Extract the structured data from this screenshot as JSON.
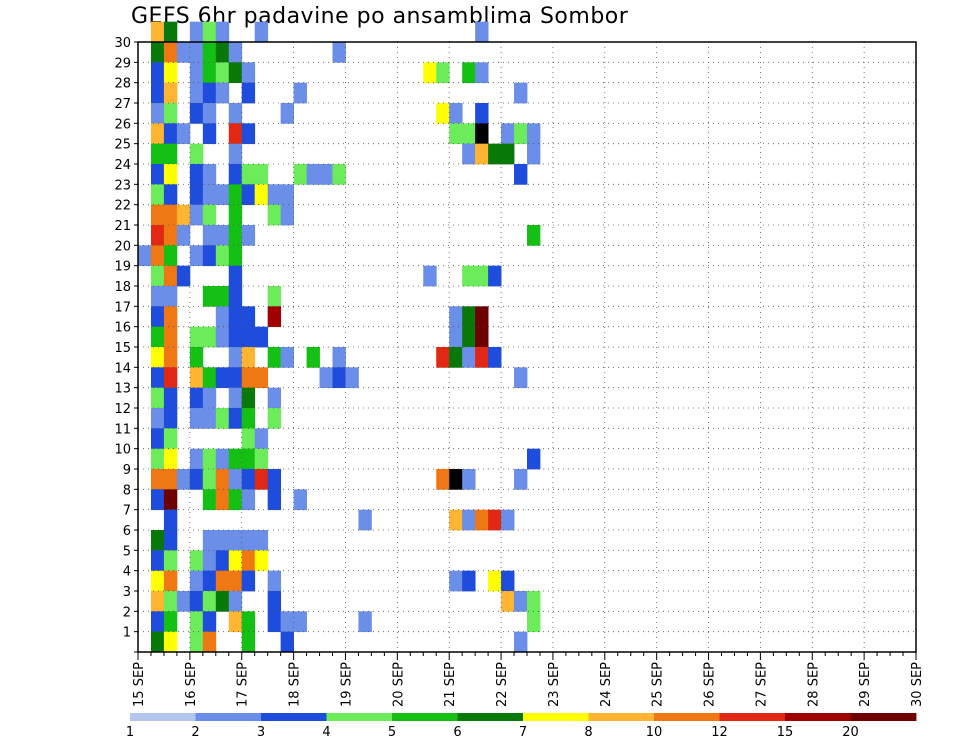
{
  "chart_data": {
    "type": "heatmap",
    "title": "GEFS 6hr padavine po ansamblima Sombor",
    "x_tick_labels": [
      "15 SEP",
      "16 SEP",
      "17 SEP",
      "18 SEP",
      "19 SEP",
      "20 SEP",
      "21 SEP",
      "22 SEP",
      "23 SEP",
      "24 SEP",
      "25 SEP",
      "26 SEP",
      "27 SEP",
      "28 SEP",
      "29 SEP",
      "30 SEP"
    ],
    "y_tick_labels": [
      "1",
      "2",
      "3",
      "4",
      "5",
      "6",
      "7",
      "8",
      "9",
      "10",
      "11",
      "12",
      "13",
      "14",
      "15",
      "16",
      "17",
      "18",
      "19",
      "20",
      "21",
      "22",
      "23",
      "24",
      "25",
      "26",
      "27",
      "28",
      "29",
      "30"
    ],
    "x_range": [
      0,
      60
    ],
    "y_range": [
      0,
      30
    ],
    "x_step_hours": 6,
    "grid": true,
    "legend": {
      "placement": "bottom",
      "labels": [
        "1",
        "2",
        "3",
        "4",
        "5",
        "6",
        "7",
        "8",
        "10",
        "12",
        "15",
        "20"
      ],
      "colors": [
        "#b4c6f0",
        "#6b8ee8",
        "#1e4cdc",
        "#6cec5a",
        "#14c014",
        "#087808",
        "#ffff00",
        "#ffb432",
        "#f07814",
        "#e02814",
        "#a00000",
        "#6e0000"
      ]
    },
    "cells": [
      [
        1,
        30,
        7
      ],
      [
        2,
        30,
        5
      ],
      [
        4,
        30,
        1
      ],
      [
        5,
        30,
        3
      ],
      [
        6,
        30,
        1
      ],
      [
        9,
        30,
        1
      ],
      [
        26,
        30,
        1
      ],
      [
        1,
        29,
        5
      ],
      [
        2,
        29,
        8
      ],
      [
        3,
        29,
        1
      ],
      [
        4,
        29,
        1
      ],
      [
        5,
        29,
        4
      ],
      [
        6,
        29,
        5
      ],
      [
        7,
        29,
        1
      ],
      [
        15,
        29,
        1
      ],
      [
        1,
        28,
        2
      ],
      [
        2,
        28,
        6
      ],
      [
        4,
        28,
        1
      ],
      [
        5,
        28,
        4
      ],
      [
        6,
        28,
        3
      ],
      [
        7,
        28,
        5
      ],
      [
        8,
        28,
        1
      ],
      [
        22,
        28,
        6
      ],
      [
        23,
        28,
        3
      ],
      [
        25,
        28,
        4
      ],
      [
        26,
        28,
        1
      ],
      [
        1,
        27,
        2
      ],
      [
        2,
        27,
        7
      ],
      [
        4,
        27,
        1
      ],
      [
        5,
        27,
        2
      ],
      [
        6,
        27,
        1
      ],
      [
        8,
        27,
        2
      ],
      [
        12,
        27,
        1
      ],
      [
        29,
        27,
        1
      ],
      [
        1,
        26,
        1
      ],
      [
        2,
        26,
        3
      ],
      [
        4,
        26,
        2
      ],
      [
        5,
        26,
        1
      ],
      [
        7,
        26,
        1
      ],
      [
        11,
        26,
        1
      ],
      [
        23,
        26,
        6
      ],
      [
        24,
        26,
        1
      ],
      [
        26,
        26,
        2
      ],
      [
        1,
        25,
        7
      ],
      [
        2,
        25,
        2
      ],
      [
        3,
        25,
        1
      ],
      [
        5,
        25,
        2
      ],
      [
        7,
        25,
        9
      ],
      [
        8,
        25,
        2
      ],
      [
        24,
        25,
        3
      ],
      [
        25,
        25,
        3
      ],
      [
        26,
        25,
        12
      ],
      [
        28,
        25,
        1
      ],
      [
        29,
        25,
        3
      ],
      [
        30,
        25,
        1
      ],
      [
        1,
        24,
        4
      ],
      [
        2,
        24,
        4
      ],
      [
        4,
        24,
        3
      ],
      [
        7,
        24,
        1
      ],
      [
        25,
        24,
        1
      ],
      [
        26,
        24,
        7
      ],
      [
        27,
        24,
        5
      ],
      [
        28,
        24,
        5
      ],
      [
        30,
        24,
        1
      ],
      [
        1,
        23,
        2
      ],
      [
        2,
        23,
        6
      ],
      [
        4,
        23,
        2
      ],
      [
        5,
        23,
        1
      ],
      [
        7,
        23,
        2
      ],
      [
        8,
        23,
        3
      ],
      [
        9,
        23,
        3
      ],
      [
        12,
        23,
        3
      ],
      [
        13,
        23,
        1
      ],
      [
        14,
        23,
        1
      ],
      [
        15,
        23,
        3
      ],
      [
        29,
        23,
        2
      ],
      [
        1,
        22,
        3
      ],
      [
        2,
        22,
        2
      ],
      [
        4,
        22,
        2
      ],
      [
        5,
        22,
        1
      ],
      [
        6,
        22,
        1
      ],
      [
        7,
        22,
        4
      ],
      [
        8,
        22,
        2
      ],
      [
        9,
        22,
        6
      ],
      [
        10,
        22,
        1
      ],
      [
        11,
        22,
        1
      ],
      [
        1,
        21,
        8
      ],
      [
        2,
        21,
        8
      ],
      [
        3,
        21,
        7
      ],
      [
        4,
        21,
        1
      ],
      [
        5,
        21,
        3
      ],
      [
        7,
        21,
        4
      ],
      [
        10,
        21,
        3
      ],
      [
        11,
        21,
        1
      ],
      [
        1,
        20,
        9
      ],
      [
        2,
        20,
        8
      ],
      [
        3,
        20,
        1
      ],
      [
        5,
        20,
        1
      ],
      [
        6,
        20,
        1
      ],
      [
        7,
        20,
        4
      ],
      [
        8,
        20,
        1
      ],
      [
        30,
        20,
        4
      ],
      [
        0,
        19,
        1
      ],
      [
        1,
        19,
        8
      ],
      [
        2,
        19,
        4
      ],
      [
        4,
        19,
        1
      ],
      [
        5,
        19,
        2
      ],
      [
        6,
        19,
        3
      ],
      [
        7,
        19,
        4
      ],
      [
        1,
        18,
        3
      ],
      [
        2,
        18,
        8
      ],
      [
        3,
        18,
        2
      ],
      [
        7,
        18,
        2
      ],
      [
        22,
        18,
        1
      ],
      [
        25,
        18,
        3
      ],
      [
        26,
        18,
        3
      ],
      [
        27,
        18,
        2
      ],
      [
        1,
        17,
        1
      ],
      [
        2,
        17,
        1
      ],
      [
        5,
        17,
        4
      ],
      [
        6,
        17,
        4
      ],
      [
        7,
        17,
        2
      ],
      [
        10,
        17,
        3
      ],
      [
        1,
        16,
        2
      ],
      [
        2,
        16,
        8
      ],
      [
        6,
        16,
        1
      ],
      [
        7,
        16,
        2
      ],
      [
        8,
        16,
        2
      ],
      [
        10,
        16,
        10
      ],
      [
        24,
        16,
        1
      ],
      [
        25,
        16,
        5
      ],
      [
        26,
        16,
        11
      ],
      [
        1,
        15,
        4
      ],
      [
        2,
        15,
        8
      ],
      [
        4,
        15,
        3
      ],
      [
        5,
        15,
        3
      ],
      [
        6,
        15,
        1
      ],
      [
        7,
        15,
        2
      ],
      [
        8,
        15,
        2
      ],
      [
        9,
        15,
        2
      ],
      [
        24,
        15,
        1
      ],
      [
        25,
        15,
        5
      ],
      [
        26,
        15,
        11
      ],
      [
        1,
        14,
        6
      ],
      [
        2,
        14,
        8
      ],
      [
        4,
        14,
        4
      ],
      [
        7,
        14,
        1
      ],
      [
        8,
        14,
        7
      ],
      [
        10,
        14,
        4
      ],
      [
        11,
        14,
        1
      ],
      [
        13,
        14,
        4
      ],
      [
        15,
        14,
        1
      ],
      [
        23,
        14,
        9
      ],
      [
        24,
        14,
        5
      ],
      [
        25,
        14,
        1
      ],
      [
        26,
        14,
        9
      ],
      [
        27,
        14,
        2
      ],
      [
        1,
        13,
        2
      ],
      [
        2,
        13,
        9
      ],
      [
        4,
        13,
        7
      ],
      [
        5,
        13,
        4
      ],
      [
        6,
        13,
        2
      ],
      [
        7,
        13,
        2
      ],
      [
        8,
        13,
        8
      ],
      [
        9,
        13,
        8
      ],
      [
        14,
        13,
        1
      ],
      [
        15,
        13,
        2
      ],
      [
        16,
        13,
        1
      ],
      [
        29,
        13,
        1
      ],
      [
        1,
        12,
        3
      ],
      [
        2,
        12,
        2
      ],
      [
        4,
        12,
        2
      ],
      [
        5,
        12,
        1
      ],
      [
        7,
        12,
        1
      ],
      [
        8,
        12,
        5
      ],
      [
        10,
        12,
        1
      ],
      [
        1,
        11,
        1
      ],
      [
        2,
        11,
        2
      ],
      [
        4,
        11,
        1
      ],
      [
        5,
        11,
        1
      ],
      [
        6,
        11,
        3
      ],
      [
        7,
        11,
        2
      ],
      [
        8,
        11,
        4
      ],
      [
        10,
        11,
        3
      ],
      [
        1,
        10,
        2
      ],
      [
        2,
        10,
        3
      ],
      [
        8,
        10,
        3
      ],
      [
        9,
        10,
        1
      ],
      [
        1,
        9,
        3
      ],
      [
        2,
        9,
        6
      ],
      [
        4,
        9,
        1
      ],
      [
        5,
        9,
        3
      ],
      [
        6,
        9,
        1
      ],
      [
        7,
        9,
        4
      ],
      [
        8,
        9,
        4
      ],
      [
        9,
        9,
        3
      ],
      [
        30,
        9,
        2
      ],
      [
        1,
        8,
        8
      ],
      [
        2,
        8,
        8
      ],
      [
        3,
        8,
        1
      ],
      [
        4,
        8,
        2
      ],
      [
        5,
        8,
        3
      ],
      [
        6,
        8,
        8
      ],
      [
        7,
        8,
        1
      ],
      [
        8,
        8,
        2
      ],
      [
        9,
        8,
        9
      ],
      [
        10,
        8,
        2
      ],
      [
        23,
        8,
        8
      ],
      [
        24,
        8,
        12
      ],
      [
        25,
        8,
        1
      ],
      [
        29,
        8,
        1
      ],
      [
        1,
        7,
        2
      ],
      [
        2,
        7,
        11
      ],
      [
        5,
        7,
        4
      ],
      [
        6,
        7,
        8
      ],
      [
        7,
        7,
        4
      ],
      [
        8,
        7,
        1
      ],
      [
        10,
        7,
        2
      ],
      [
        12,
        7,
        1
      ],
      [
        2,
        6,
        2
      ],
      [
        17,
        6,
        1
      ],
      [
        24,
        6,
        7
      ],
      [
        25,
        6,
        1
      ],
      [
        26,
        6,
        8
      ],
      [
        27,
        6,
        9
      ],
      [
        28,
        6,
        1
      ],
      [
        1,
        5,
        5
      ],
      [
        2,
        5,
        2
      ],
      [
        5,
        5,
        1
      ],
      [
        6,
        5,
        1
      ],
      [
        7,
        5,
        1
      ],
      [
        8,
        5,
        1
      ],
      [
        9,
        5,
        1
      ],
      [
        1,
        4,
        2
      ],
      [
        2,
        4,
        3
      ],
      [
        4,
        4,
        3
      ],
      [
        5,
        4,
        1
      ],
      [
        6,
        4,
        2
      ],
      [
        7,
        4,
        6
      ],
      [
        8,
        4,
        8
      ],
      [
        9,
        4,
        6
      ],
      [
        1,
        3,
        6
      ],
      [
        2,
        3,
        8
      ],
      [
        4,
        3,
        1
      ],
      [
        5,
        3,
        2
      ],
      [
        6,
        3,
        8
      ],
      [
        7,
        3,
        8
      ],
      [
        8,
        3,
        2
      ],
      [
        10,
        3,
        1
      ],
      [
        24,
        3,
        1
      ],
      [
        25,
        3,
        2
      ],
      [
        27,
        3,
        6
      ],
      [
        28,
        3,
        2
      ],
      [
        1,
        2,
        7
      ],
      [
        2,
        2,
        3
      ],
      [
        3,
        2,
        1
      ],
      [
        4,
        2,
        2
      ],
      [
        5,
        2,
        3
      ],
      [
        6,
        2,
        5
      ],
      [
        7,
        2,
        1
      ],
      [
        10,
        2,
        2
      ],
      [
        28,
        2,
        7
      ],
      [
        29,
        2,
        1
      ],
      [
        30,
        2,
        3
      ],
      [
        1,
        1,
        2
      ],
      [
        2,
        1,
        4
      ],
      [
        4,
        1,
        3
      ],
      [
        5,
        1,
        2
      ],
      [
        7,
        1,
        7
      ],
      [
        8,
        1,
        4
      ],
      [
        10,
        1,
        2
      ],
      [
        11,
        1,
        1
      ],
      [
        12,
        1,
        1
      ],
      [
        17,
        1,
        1
      ],
      [
        30,
        1,
        3
      ],
      [
        1,
        0,
        5
      ],
      [
        2,
        0,
        6
      ],
      [
        4,
        0,
        3
      ],
      [
        5,
        0,
        8
      ],
      [
        8,
        0,
        4
      ],
      [
        11,
        0,
        2
      ],
      [
        29,
        0,
        1
      ]
    ]
  }
}
